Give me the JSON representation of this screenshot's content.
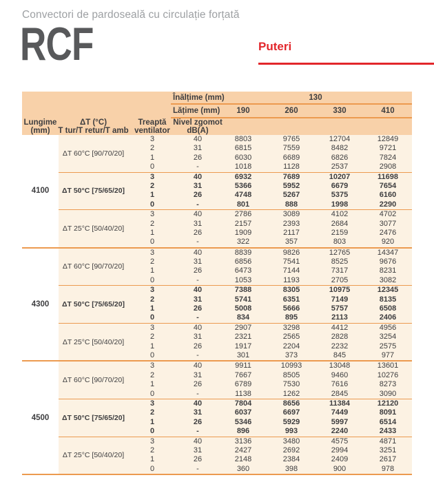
{
  "page": {
    "subtitle": "Convectori de pardoseală cu circulație forțată",
    "model": "RCF",
    "section_label": "Puteri"
  },
  "colors": {
    "accent_red": "#e2262b",
    "rule_orange": "#ec9a4f",
    "header_bg": "#f8d1a9",
    "body_bg": "#fcf2e3",
    "text": "#3d3d3f"
  },
  "table": {
    "header": {
      "height_label": "Înălțime (mm)",
      "height_value": "130",
      "width_label": "Lățime (mm)",
      "width_values": [
        "190",
        "260",
        "330",
        "410"
      ],
      "col_length": [
        "Lungime",
        "(mm)"
      ],
      "col_dt": [
        "ΔT (°C)",
        "T tur/T retur/T amb"
      ],
      "col_step": [
        "Treaptă",
        "ventilator"
      ],
      "col_noise": [
        "Nivel zgomot",
        "dB(A)"
      ]
    },
    "groups": [
      {
        "length": "4100",
        "sections": [
          {
            "dt": "ΔT 60°C [90/70/20]",
            "bold": false,
            "rows": [
              {
                "step": "3",
                "noise": "40",
                "values": [
                  "8803",
                  "9765",
                  "12704",
                  "12849"
                ]
              },
              {
                "step": "2",
                "noise": "31",
                "values": [
                  "6815",
                  "7559",
                  "8482",
                  "9721"
                ]
              },
              {
                "step": "1",
                "noise": "26",
                "values": [
                  "6030",
                  "6689",
                  "6826",
                  "7824"
                ]
              },
              {
                "step": "0",
                "noise": "-",
                "values": [
                  "1018",
                  "1128",
                  "2537",
                  "2908"
                ]
              }
            ]
          },
          {
            "dt": "ΔT 50°C [75/65/20]",
            "bold": true,
            "rows": [
              {
                "step": "3",
                "noise": "40",
                "values": [
                  "6932",
                  "7689",
                  "10207",
                  "11698"
                ]
              },
              {
                "step": "2",
                "noise": "31",
                "values": [
                  "5366",
                  "5952",
                  "6679",
                  "7654"
                ]
              },
              {
                "step": "1",
                "noise": "26",
                "values": [
                  "4748",
                  "5267",
                  "5375",
                  "6160"
                ]
              },
              {
                "step": "0",
                "noise": "-",
                "values": [
                  "801",
                  "888",
                  "1998",
                  "2290"
                ]
              }
            ]
          },
          {
            "dt": "ΔT 25°C [50/40/20]",
            "bold": false,
            "rows": [
              {
                "step": "3",
                "noise": "40",
                "values": [
                  "2786",
                  "3089",
                  "4102",
                  "4702"
                ]
              },
              {
                "step": "2",
                "noise": "31",
                "values": [
                  "2157",
                  "2393",
                  "2684",
                  "3077"
                ]
              },
              {
                "step": "1",
                "noise": "26",
                "values": [
                  "1909",
                  "2117",
                  "2159",
                  "2476"
                ]
              },
              {
                "step": "0",
                "noise": "-",
                "values": [
                  "322",
                  "357",
                  "803",
                  "920"
                ]
              }
            ]
          }
        ]
      },
      {
        "length": "4300",
        "sections": [
          {
            "dt": "ΔT 60°C [90/70/20]",
            "bold": false,
            "rows": [
              {
                "step": "3",
                "noise": "40",
                "values": [
                  "8839",
                  "9826",
                  "12765",
                  "14347"
                ]
              },
              {
                "step": "2",
                "noise": "31",
                "values": [
                  "6856",
                  "7541",
                  "8525",
                  "9676"
                ]
              },
              {
                "step": "1",
                "noise": "26",
                "values": [
                  "6473",
                  "7144",
                  "7317",
                  "8231"
                ]
              },
              {
                "step": "0",
                "noise": "-",
                "values": [
                  "1053",
                  "1193",
                  "2705",
                  "3082"
                ]
              }
            ]
          },
          {
            "dt": "ΔT 50°C [75/65/20]",
            "bold": true,
            "rows": [
              {
                "step": "3",
                "noise": "40",
                "values": [
                  "7388",
                  "8305",
                  "10975",
                  "12345"
                ]
              },
              {
                "step": "2",
                "noise": "31",
                "values": [
                  "5741",
                  "6351",
                  "7149",
                  "8135"
                ]
              },
              {
                "step": "1",
                "noise": "26",
                "values": [
                  "5008",
                  "5666",
                  "5757",
                  "6508"
                ]
              },
              {
                "step": "0",
                "noise": "-",
                "values": [
                  "834",
                  "895",
                  "2113",
                  "2406"
                ]
              }
            ]
          },
          {
            "dt": "ΔT 25°C [50/40/20]",
            "bold": false,
            "rows": [
              {
                "step": "3",
                "noise": "40",
                "values": [
                  "2907",
                  "3298",
                  "4412",
                  "4956"
                ]
              },
              {
                "step": "2",
                "noise": "31",
                "values": [
                  "2321",
                  "2565",
                  "2828",
                  "3254"
                ]
              },
              {
                "step": "1",
                "noise": "26",
                "values": [
                  "1917",
                  "2204",
                  "2232",
                  "2575"
                ]
              },
              {
                "step": "0",
                "noise": "-",
                "values": [
                  "301",
                  "373",
                  "845",
                  "977"
                ]
              }
            ]
          }
        ]
      },
      {
        "length": "4500",
        "sections": [
          {
            "dt": "ΔT 60°C [90/70/20]",
            "bold": false,
            "rows": [
              {
                "step": "3",
                "noise": "40",
                "values": [
                  "9911",
                  "10993",
                  "13048",
                  "13601"
                ]
              },
              {
                "step": "2",
                "noise": "31",
                "values": [
                  "7667",
                  "8505",
                  "9460",
                  "10276"
                ]
              },
              {
                "step": "1",
                "noise": "26",
                "values": [
                  "6789",
                  "7530",
                  "7616",
                  "8273"
                ]
              },
              {
                "step": "0",
                "noise": "-",
                "values": [
                  "1138",
                  "1262",
                  "2845",
                  "3090"
                ]
              }
            ]
          },
          {
            "dt": "ΔT 50°C [75/65/20]",
            "bold": true,
            "rows": [
              {
                "step": "3",
                "noise": "40",
                "values": [
                  "7804",
                  "8656",
                  "11384",
                  "12120"
                ]
              },
              {
                "step": "2",
                "noise": "31",
                "values": [
                  "6037",
                  "6697",
                  "7449",
                  "8091"
                ]
              },
              {
                "step": "1",
                "noise": "26",
                "values": [
                  "5346",
                  "5929",
                  "5997",
                  "6514"
                ]
              },
              {
                "step": "0",
                "noise": "-",
                "values": [
                  "896",
                  "993",
                  "2240",
                  "2433"
                ]
              }
            ]
          },
          {
            "dt": "ΔT 25°C [50/40/20]",
            "bold": false,
            "rows": [
              {
                "step": "3",
                "noise": "40",
                "values": [
                  "3136",
                  "3480",
                  "4575",
                  "4871"
                ]
              },
              {
                "step": "2",
                "noise": "31",
                "values": [
                  "2427",
                  "2692",
                  "2994",
                  "3251"
                ]
              },
              {
                "step": "1",
                "noise": "26",
                "values": [
                  "2148",
                  "2384",
                  "2409",
                  "2617"
                ]
              },
              {
                "step": "0",
                "noise": "-",
                "values": [
                  "360",
                  "398",
                  "900",
                  "978"
                ]
              }
            ]
          }
        ]
      }
    ]
  }
}
